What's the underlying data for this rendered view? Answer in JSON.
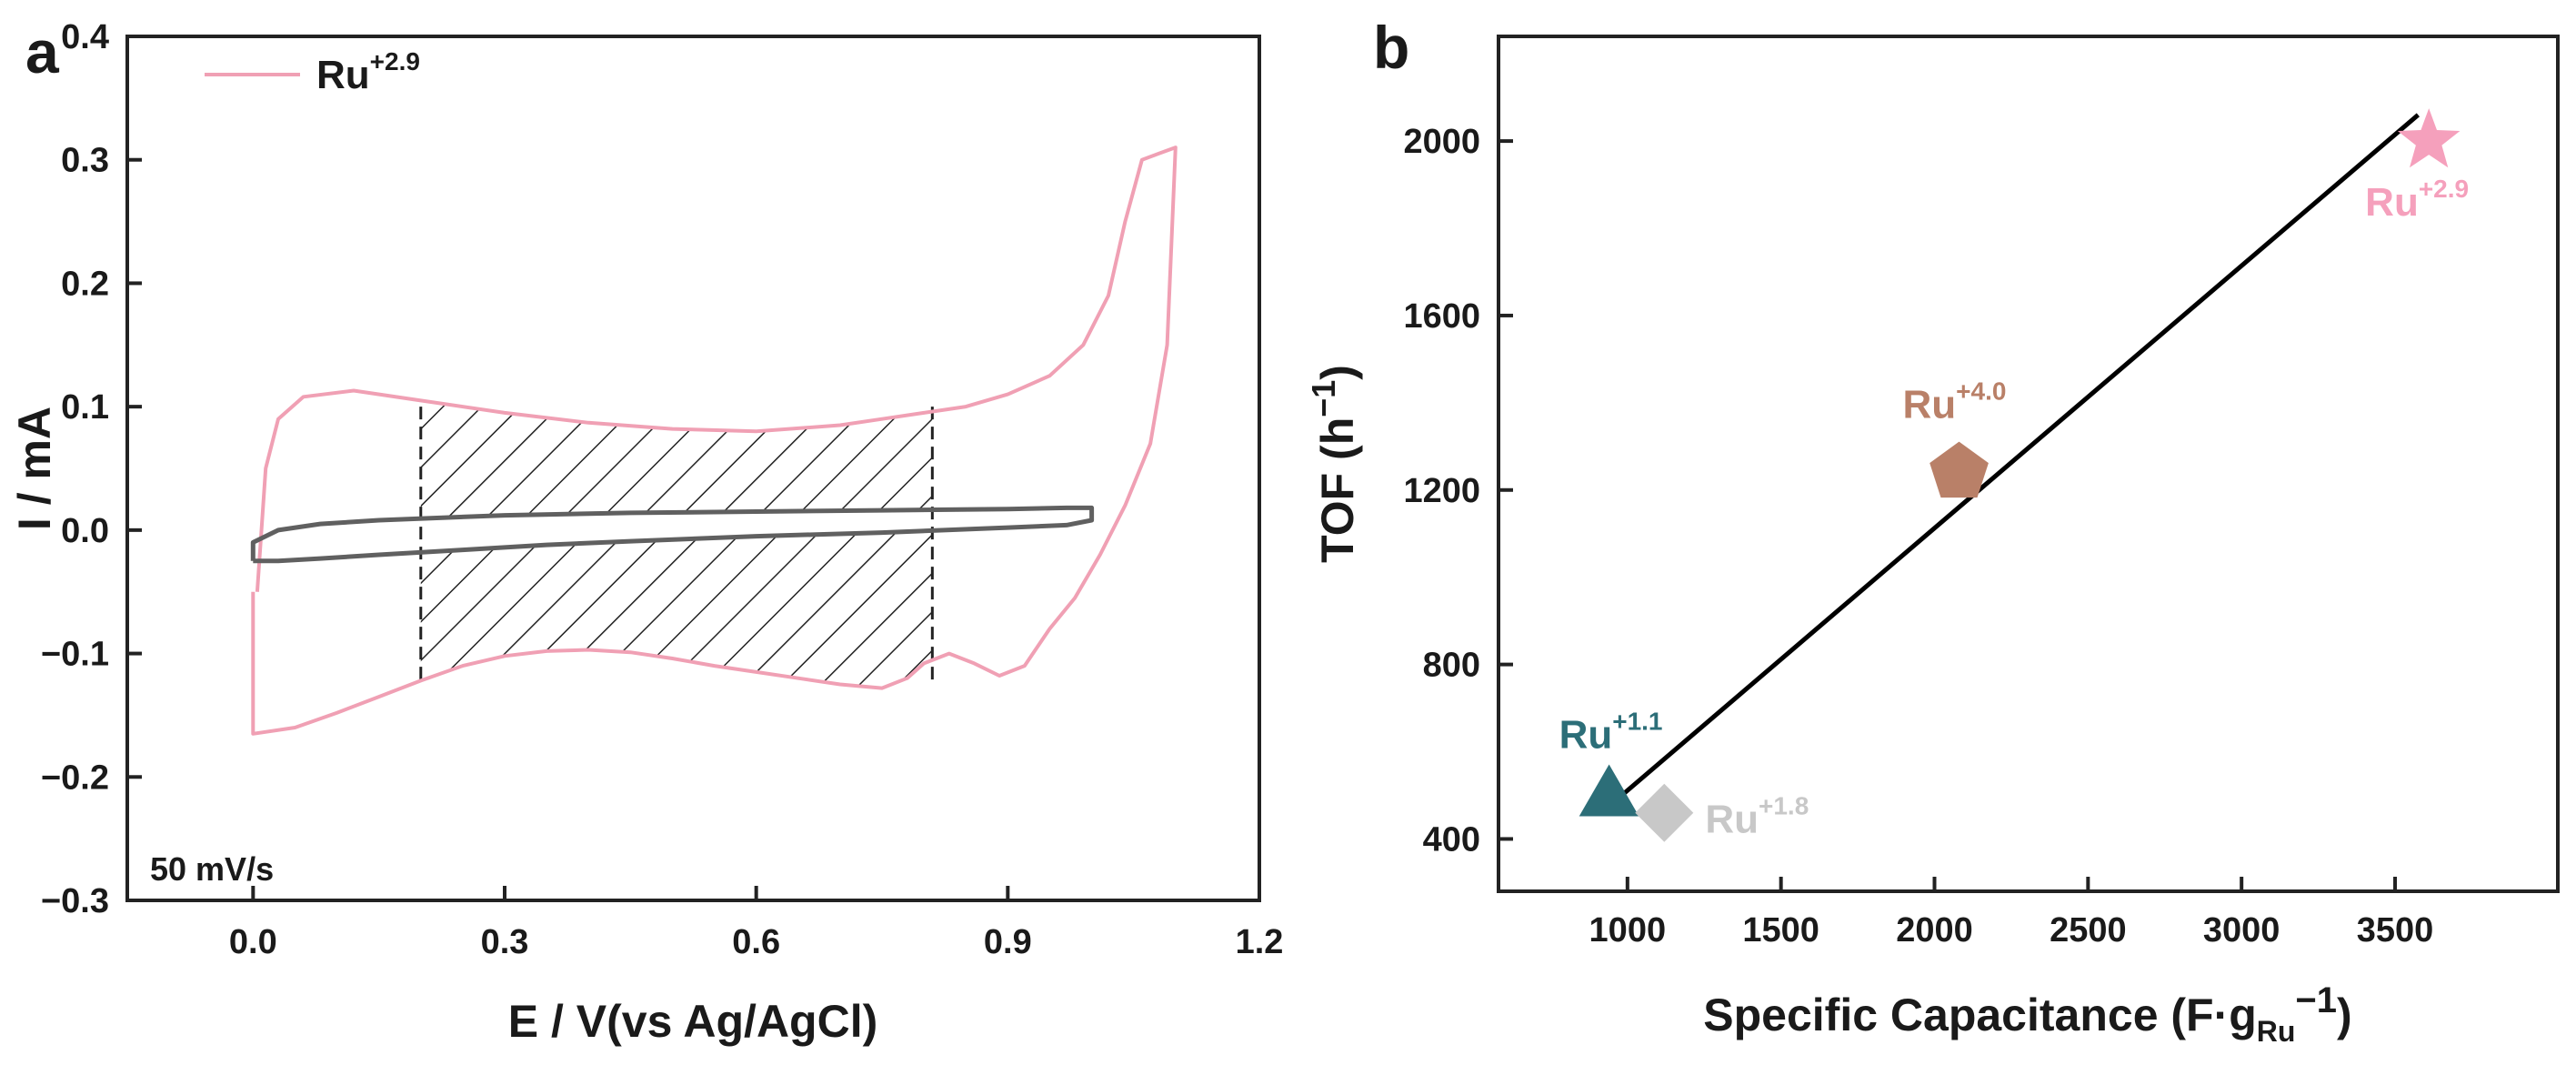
{
  "panels": {
    "a": "a",
    "b": "b"
  },
  "chart_data": [
    {
      "type": "line",
      "id": "a",
      "xlabel": "E / V(vs Ag/AgCl)",
      "ylabel": "I / mA",
      "xlim": [
        -0.15,
        1.2
      ],
      "ylim": [
        -0.3,
        0.4
      ],
      "xticks": [
        0.0,
        0.3,
        0.6,
        0.9,
        1.2
      ],
      "xtick_labels": [
        "0.0",
        "0.3",
        "0.6",
        "0.9",
        "1.2"
      ],
      "yticks": [
        -0.3,
        -0.2,
        -0.1,
        0.0,
        0.1,
        0.2,
        0.3,
        0.4
      ],
      "ytick_labels": [
        "−0.3",
        "−0.2",
        "−0.1",
        "0.0",
        "0.1",
        "0.2",
        "0.3",
        "0.4"
      ],
      "legend": {
        "base": "Ru",
        "sup": "+2.9",
        "color": "#f0a0b4",
        "position": "top-left"
      },
      "annotation": "50 mV/s",
      "shaded_region": {
        "x_start": 0.2,
        "x_end": 0.81
      },
      "series": [
        {
          "name": "Ru+2.9",
          "color": "#f0a0b4",
          "points": [
            [
              0.0,
              -0.05
            ],
            [
              0.0,
              -0.165
            ],
            [
              0.05,
              -0.16
            ],
            [
              0.1,
              -0.148
            ],
            [
              0.15,
              -0.135
            ],
            [
              0.2,
              -0.122
            ],
            [
              0.25,
              -0.11
            ],
            [
              0.3,
              -0.102
            ],
            [
              0.35,
              -0.098
            ],
            [
              0.4,
              -0.097
            ],
            [
              0.45,
              -0.099
            ],
            [
              0.5,
              -0.104
            ],
            [
              0.55,
              -0.11
            ],
            [
              0.6,
              -0.115
            ],
            [
              0.65,
              -0.12
            ],
            [
              0.7,
              -0.125
            ],
            [
              0.75,
              -0.128
            ],
            [
              0.78,
              -0.12
            ],
            [
              0.8,
              -0.108
            ],
            [
              0.83,
              -0.1
            ],
            [
              0.86,
              -0.108
            ],
            [
              0.89,
              -0.118
            ],
            [
              0.92,
              -0.11
            ],
            [
              0.95,
              -0.08
            ],
            [
              0.98,
              -0.055
            ],
            [
              1.01,
              -0.02
            ],
            [
              1.04,
              0.02
            ],
            [
              1.07,
              0.07
            ],
            [
              1.09,
              0.15
            ],
            [
              1.1,
              0.31
            ],
            [
              1.08,
              0.305
            ],
            [
              1.06,
              0.3
            ],
            [
              1.04,
              0.25
            ],
            [
              1.02,
              0.19
            ],
            [
              0.99,
              0.15
            ],
            [
              0.95,
              0.125
            ],
            [
              0.9,
              0.11
            ],
            [
              0.85,
              0.1
            ],
            [
              0.8,
              0.095
            ],
            [
              0.75,
              0.09
            ],
            [
              0.7,
              0.085
            ],
            [
              0.6,
              0.08
            ],
            [
              0.5,
              0.082
            ],
            [
              0.4,
              0.087
            ],
            [
              0.3,
              0.095
            ],
            [
              0.2,
              0.105
            ],
            [
              0.12,
              0.113
            ],
            [
              0.06,
              0.108
            ],
            [
              0.03,
              0.09
            ],
            [
              0.015,
              0.05
            ],
            [
              0.008,
              -0.02
            ],
            [
              0.005,
              -0.05
            ]
          ]
        },
        {
          "name": "inner",
          "color": "#606060",
          "points": [
            [
              0.0,
              -0.025
            ],
            [
              0.0,
              -0.01
            ],
            [
              0.03,
              0.0
            ],
            [
              0.08,
              0.005
            ],
            [
              0.15,
              0.008
            ],
            [
              0.3,
              0.012
            ],
            [
              0.45,
              0.014
            ],
            [
              0.6,
              0.015
            ],
            [
              0.75,
              0.016
            ],
            [
              0.9,
              0.017
            ],
            [
              0.97,
              0.018
            ],
            [
              1.0,
              0.018
            ],
            [
              1.0,
              0.008
            ],
            [
              0.97,
              0.004
            ],
            [
              0.9,
              0.002
            ],
            [
              0.75,
              -0.002
            ],
            [
              0.6,
              -0.005
            ],
            [
              0.45,
              -0.009
            ],
            [
              0.35,
              -0.012
            ],
            [
              0.25,
              -0.016
            ],
            [
              0.15,
              -0.02
            ],
            [
              0.08,
              -0.023
            ],
            [
              0.03,
              -0.025
            ],
            [
              0.0,
              -0.025
            ]
          ]
        }
      ]
    },
    {
      "type": "scatter",
      "id": "b",
      "xlabel_parts": [
        "Specific Capacitance (F·g",
        "Ru",
        "−1",
        ")"
      ],
      "ylabel_parts": [
        "TOF (h",
        "−1",
        ")"
      ],
      "xlim": [
        580,
        4030
      ],
      "ylim": [
        280,
        2240
      ],
      "xticks": [
        1000,
        1500,
        2000,
        2500,
        3000,
        3500
      ],
      "xtick_labels": [
        "1000",
        "1500",
        "2000",
        "2500",
        "3000",
        "3500"
      ],
      "yticks": [
        400,
        800,
        1200,
        1600,
        2000
      ],
      "ytick_labels": [
        "400",
        "800",
        "1200",
        "1600",
        "2000"
      ],
      "fit_line": {
        "x": [
          940,
          3575
        ],
        "y": [
          475,
          2060
        ],
        "color": "#000000"
      },
      "points": [
        {
          "label": "Ru",
          "sup": "+1.1",
          "x": 940,
          "y": 500,
          "marker": "triangle",
          "color": "#2c6e78"
        },
        {
          "label": "Ru",
          "sup": "+1.8",
          "x": 1120,
          "y": 460,
          "marker": "diamond",
          "color": "#c8c8c8"
        },
        {
          "label": "Ru",
          "sup": "+4.0",
          "x": 2080,
          "y": 1240,
          "marker": "pentagon",
          "color": "#b98068"
        },
        {
          "label": "Ru",
          "sup": "+2.9",
          "x": 3610,
          "y": 2000,
          "marker": "star",
          "color": "#f5a0bc"
        }
      ]
    }
  ]
}
